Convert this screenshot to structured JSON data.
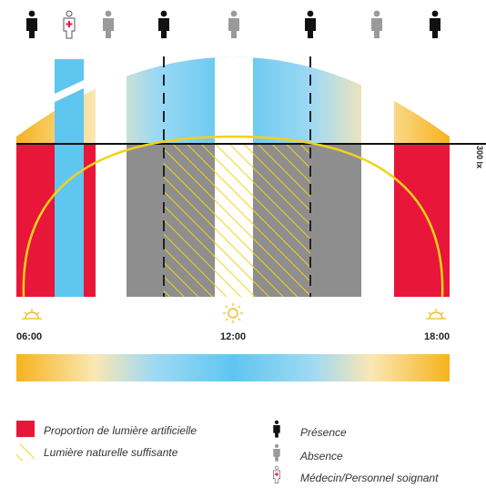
{
  "timeline": {
    "start_label": "06:00",
    "noon_label": "12:00",
    "end_label": "18:00"
  },
  "threshold_label": "300 lx",
  "legend": {
    "artificial": "Proportion de lumière artificielle",
    "natural": "Lumière naturelle suffisante",
    "presence": "Présence",
    "absence": "Absence",
    "doctor": "Médecin/Personnel soignant"
  },
  "occupancy": [
    "presence",
    "doctor",
    "absence",
    "presence",
    "absence",
    "presence",
    "absence",
    "presence"
  ],
  "colors": {
    "artificial_red": "#e8173a",
    "natural_yellow": "#f2d21a",
    "sky_blue": "#5fc6f0",
    "warm_orange": "#f6b31c",
    "gray": "#8e8e8e"
  }
}
